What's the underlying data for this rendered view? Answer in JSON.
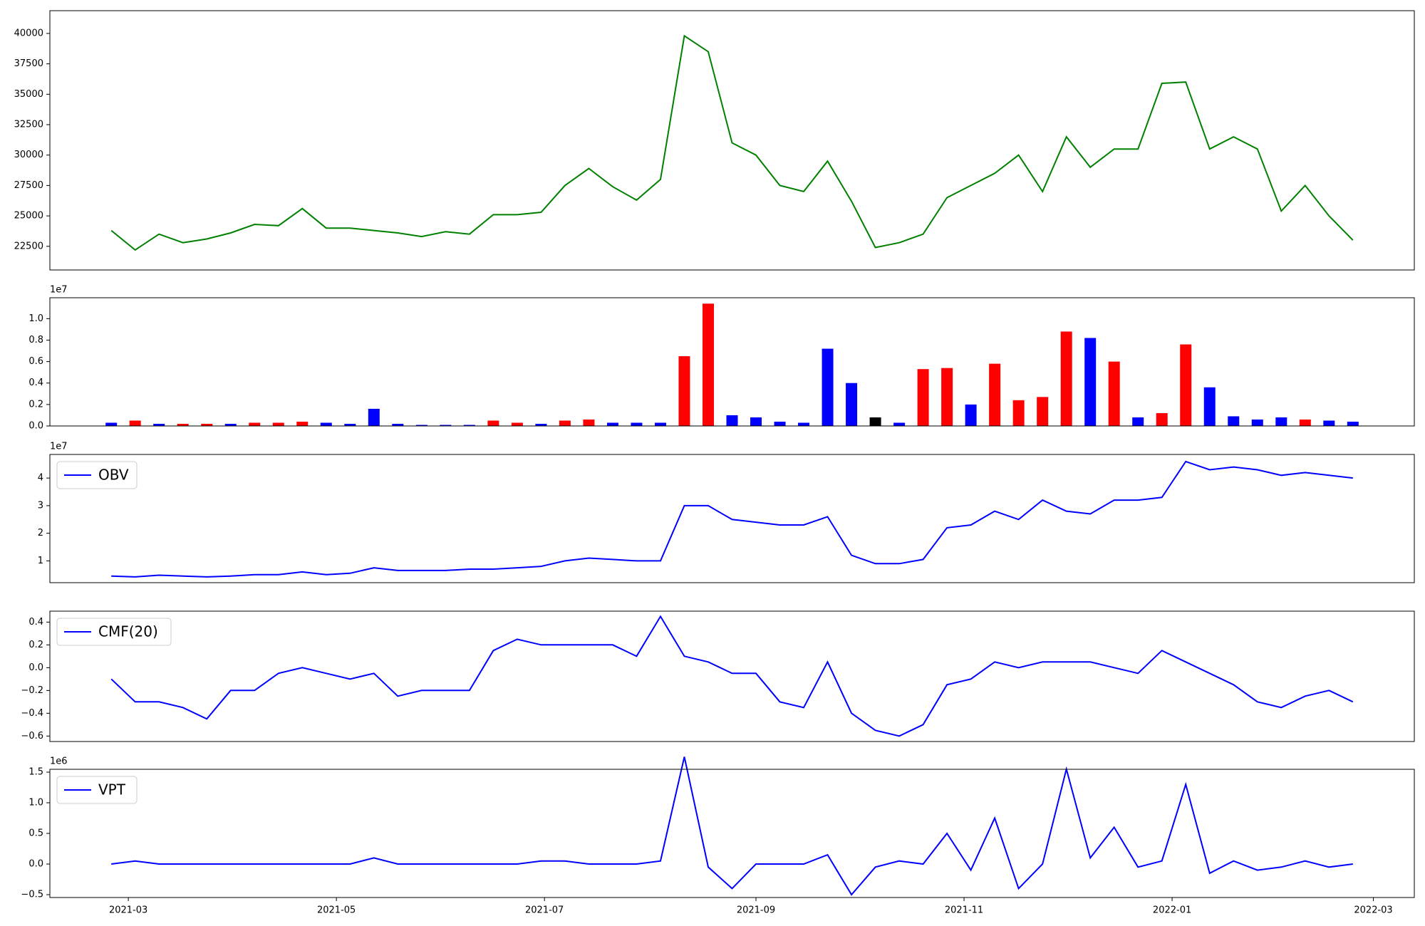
{
  "chart_data": {
    "type": "stacked-panels",
    "x": [
      "2021-02-24",
      "2021-03-03",
      "2021-03-10",
      "2021-03-17",
      "2021-03-24",
      "2021-03-31",
      "2021-04-07",
      "2021-04-14",
      "2021-04-21",
      "2021-04-28",
      "2021-05-05",
      "2021-05-12",
      "2021-05-19",
      "2021-05-26",
      "2021-06-02",
      "2021-06-09",
      "2021-06-16",
      "2021-06-23",
      "2021-06-30",
      "2021-07-07",
      "2021-07-14",
      "2021-07-21",
      "2021-07-28",
      "2021-08-04",
      "2021-08-11",
      "2021-08-18",
      "2021-08-25",
      "2021-09-01",
      "2021-09-08",
      "2021-09-15",
      "2021-09-22",
      "2021-09-29",
      "2021-10-06",
      "2021-10-13",
      "2021-10-20",
      "2021-10-27",
      "2021-11-03",
      "2021-11-10",
      "2021-11-17",
      "2021-11-24",
      "2021-12-01",
      "2021-12-08",
      "2021-12-15",
      "2021-12-22",
      "2021-12-29",
      "2022-01-05",
      "2022-01-12",
      "2022-01-19",
      "2022-01-26",
      "2022-02-02",
      "2022-02-09",
      "2022-02-16",
      "2022-02-23"
    ],
    "xlim": [
      "2021-02-06",
      "2022-03-13"
    ],
    "xticks": [
      {
        "value": "2021-03-01",
        "label": "2021-03"
      },
      {
        "value": "2021-05-01",
        "label": "2021-05"
      },
      {
        "value": "2021-07-01",
        "label": "2021-07"
      },
      {
        "value": "2021-09-01",
        "label": "2021-09"
      },
      {
        "value": "2021-11-01",
        "label": "2021-11"
      },
      {
        "value": "2022-01-01",
        "label": "2022-01"
      },
      {
        "value": "2022-03-01",
        "label": "2022-03"
      }
    ],
    "panels": [
      {
        "type": "line",
        "series": [
          {
            "color": "#008000",
            "values": [
              23800,
              22200,
              23500,
              22800,
              23100,
              23600,
              24300,
              24200,
              25600,
              24000,
              24000,
              23800,
              23600,
              23300,
              23700,
              23500,
              25100,
              25100,
              25300,
              27500,
              28900,
              27400,
              26300,
              28000,
              39800,
              38500,
              31000,
              30000,
              27500,
              27000,
              29500,
              26200,
              22400,
              22800,
              23500,
              26500,
              27500,
              28500,
              30000,
              27000,
              31500,
              29000,
              30500,
              30500,
              35900,
              36000,
              30500,
              31500,
              30500,
              25400,
              27500,
              25000,
              23000
            ]
          }
        ],
        "ylim": [
          20555,
          41870
        ],
        "yticks": [
          22500,
          25000,
          27500,
          30000,
          32500,
          35000,
          37500,
          40000
        ]
      },
      {
        "type": "bar",
        "offset_text": "1e7",
        "values": [
          300000,
          500000,
          200000,
          200000,
          200000,
          200000,
          300000,
          300000,
          400000,
          300000,
          200000,
          1600000,
          200000,
          100000,
          100000,
          100000,
          500000,
          300000,
          200000,
          500000,
          600000,
          300000,
          300000,
          300000,
          6500000,
          11400000,
          1000000,
          800000,
          400000,
          300000,
          7200000,
          4000000,
          800000,
          300000,
          5300000,
          5400000,
          2000000,
          5800000,
          2400000,
          2700000,
          8800000,
          8200000,
          6000000,
          800000,
          1200000,
          7600000,
          3600000,
          900000,
          600000,
          800000,
          600000,
          500000,
          400000
        ],
        "colors": [
          "#0000ff",
          "#ff0000",
          "#0000ff",
          "#ff0000",
          "#ff0000",
          "#0000ff",
          "#ff0000",
          "#ff0000",
          "#ff0000",
          "#0000ff",
          "#0000ff",
          "#0000ff",
          "#0000ff",
          "#0000ff",
          "#0000ff",
          "#0000ff",
          "#ff0000",
          "#ff0000",
          "#0000ff",
          "#ff0000",
          "#ff0000",
          "#0000ff",
          "#0000ff",
          "#0000ff",
          "#ff0000",
          "#ff0000",
          "#0000ff",
          "#0000ff",
          "#0000ff",
          "#0000ff",
          "#0000ff",
          "#0000ff",
          "#000000",
          "#0000ff",
          "#ff0000",
          "#ff0000",
          "#0000ff",
          "#ff0000",
          "#ff0000",
          "#ff0000",
          "#ff0000",
          "#0000ff",
          "#ff0000",
          "#0000ff",
          "#ff0000",
          "#ff0000",
          "#0000ff",
          "#0000ff",
          "#0000ff",
          "#0000ff",
          "#ff0000",
          "#0000ff",
          "#0000ff"
        ],
        "ylim": [
          0,
          11950000
        ],
        "yticks": [
          {
            "value": 0,
            "label": "0.0"
          },
          {
            "value": 2000000,
            "label": "0.2"
          },
          {
            "value": 4000000,
            "label": "0.4"
          },
          {
            "value": 6000000,
            "label": "0.6"
          },
          {
            "value": 8000000,
            "label": "0.8"
          },
          {
            "value": 10000000,
            "label": "1.0"
          }
        ]
      },
      {
        "type": "line",
        "offset_text": "1e7",
        "legend": "upper left",
        "series": [
          {
            "name": "OBV",
            "color": "#0000ff",
            "values": [
              4500000,
              4200000,
              4800000,
              4500000,
              4200000,
              4500000,
              5000000,
              5000000,
              6000000,
              5000000,
              5500000,
              7500000,
              6500000,
              6500000,
              6500000,
              7000000,
              7000000,
              7500000,
              8000000,
              10000000,
              11000000,
              10500000,
              10000000,
              10000000,
              30000000,
              30000000,
              25000000,
              24000000,
              23000000,
              23000000,
              26000000,
              12000000,
              9000000,
              9000000,
              10500000,
              22000000,
              23000000,
              28000000,
              25000000,
              32000000,
              28000000,
              27000000,
              32000000,
              32000000,
              33000000,
              46000000,
              43000000,
              44000000,
              43000000,
              41000000,
              42000000,
              41000000,
              40000000
            ]
          }
        ],
        "ylim": [
          2100000,
          48550000
        ],
        "yticks": [
          {
            "value": 10000000,
            "label": "1"
          },
          {
            "value": 20000000,
            "label": "2"
          },
          {
            "value": 30000000,
            "label": "3"
          },
          {
            "value": 40000000,
            "label": "4"
          }
        ]
      },
      {
        "type": "line",
        "legend": "upper left",
        "series": [
          {
            "name": "CMF(20)",
            "color": "#0000ff",
            "values": [
              -0.1,
              -0.3,
              -0.3,
              -0.35,
              -0.45,
              -0.2,
              -0.2,
              -0.05,
              0,
              -0.05,
              -0.1,
              -0.05,
              -0.25,
              -0.2,
              -0.2,
              -0.2,
              0.15,
              0.25,
              0.2,
              0.2,
              0.2,
              0.2,
              0.1,
              0.45,
              0.1,
              0.05,
              -0.05,
              -0.05,
              -0.3,
              -0.35,
              0.05,
              -0.4,
              -0.55,
              -0.6,
              -0.5,
              -0.15,
              -0.1,
              0.05,
              0,
              0.05,
              0.05,
              0.05,
              0,
              -0.05,
              0.15,
              0.05,
              -0.05,
              -0.15,
              -0.3,
              -0.35,
              -0.25,
              -0.2,
              -0.3
            ]
          }
        ],
        "ylim": [
          -0.648,
          0.496
        ],
        "yticks": [
          {
            "value": -0.6,
            "label": "−0.6"
          },
          {
            "value": -0.4,
            "label": "−0.4"
          },
          {
            "value": -0.2,
            "label": "−0.2"
          },
          {
            "value": 0,
            "label": "0.0"
          },
          0.2,
          0.4
        ]
      },
      {
        "type": "line",
        "offset_text": "1e6",
        "legend": "upper left",
        "show_xticks": true,
        "series": [
          {
            "name": "VPT",
            "color": "#0000ff",
            "values": [
              0,
              50000,
              0,
              0,
              0,
              0,
              0,
              0,
              0,
              0,
              0,
              100000,
              0,
              0,
              0,
              0,
              0,
              0,
              50000,
              50000,
              0,
              0,
              0,
              50000,
              1750000,
              -50000,
              -400000,
              0,
              0,
              0,
              150000,
              -500000,
              -50000,
              50000,
              0,
              500000,
              -100000,
              750000,
              -400000,
              0,
              1550000,
              100000,
              600000,
              -50000,
              50000,
              1300000,
              -150000,
              50000,
              -100000,
              -50000,
              50000,
              -50000,
              0
            ]
          }
        ],
        "ylim": [
          -546500,
          1546500
        ],
        "yticks": [
          {
            "value": -500000,
            "label": "−0.5"
          },
          {
            "value": 0,
            "label": "0.0"
          },
          {
            "value": 500000,
            "label": "0.5"
          },
          {
            "value": 1000000,
            "label": "1.0"
          },
          {
            "value": 1500000,
            "label": "1.5"
          }
        ]
      }
    ]
  }
}
